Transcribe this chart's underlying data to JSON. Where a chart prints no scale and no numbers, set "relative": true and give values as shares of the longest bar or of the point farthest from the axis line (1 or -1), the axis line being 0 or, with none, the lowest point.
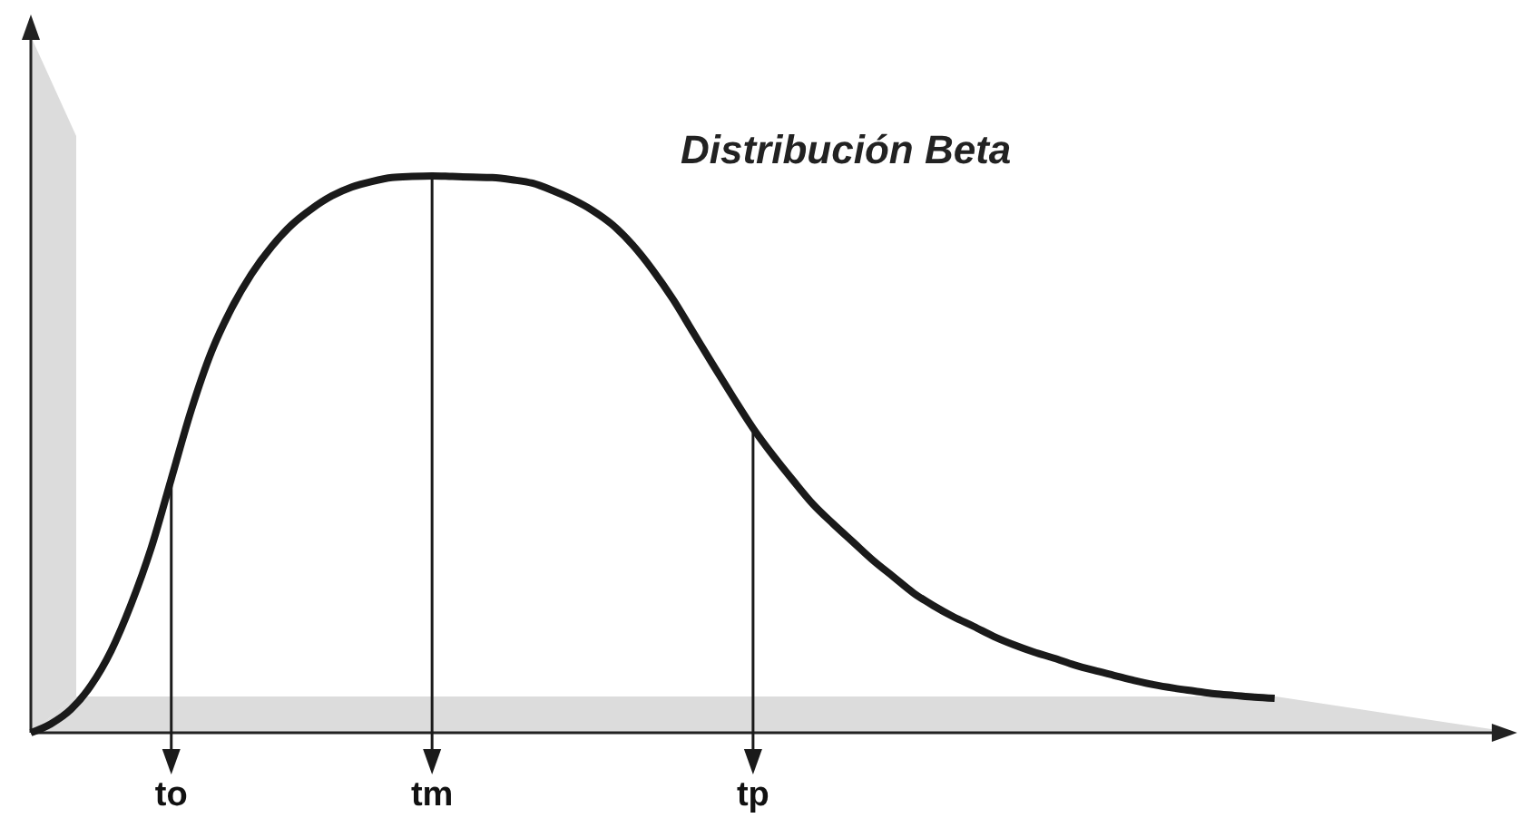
{
  "chart_data": {
    "type": "line",
    "title": "Distribución Beta",
    "relative": true,
    "categories": [
      null,
      null,
      null,
      null,
      null,
      null,
      null,
      "to",
      null,
      null,
      null,
      null,
      null,
      null,
      null,
      null,
      null,
      null,
      null,
      null,
      "tm",
      null,
      null,
      null,
      null,
      null,
      null,
      null,
      null,
      null,
      null,
      null,
      null,
      null,
      null,
      null,
      "tp",
      null,
      null,
      null,
      null,
      null,
      null,
      null,
      null,
      null,
      null,
      null,
      null,
      null,
      null,
      null,
      null,
      null,
      null,
      null,
      null,
      null,
      null,
      null,
      null,
      null,
      null
    ],
    "values": [
      0,
      0.016,
      0.042,
      0.085,
      0.147,
      0.231,
      0.332,
      0.456,
      0.58,
      0.684,
      0.762,
      0.824,
      0.873,
      0.912,
      0.941,
      0.964,
      0.98,
      0.99,
      0.997,
      0.999,
      1,
      0.999,
      0.998,
      0.997,
      0.993,
      0.987,
      0.974,
      0.958,
      0.938,
      0.912,
      0.876,
      0.831,
      0.779,
      0.72,
      0.661,
      0.603,
      0.547,
      0.498,
      0.453,
      0.41,
      0.375,
      0.342,
      0.309,
      0.28,
      0.251,
      0.228,
      0.208,
      0.191,
      0.173,
      0.158,
      0.145,
      0.134,
      0.122,
      0.112,
      0.103,
      0.094,
      0.086,
      0.08,
      0.075,
      0.07,
      0.067,
      0.064,
      0.062
    ],
    "color": "#1a1a1a",
    "ref_lines": [
      {
        "axis": "x",
        "value": "to"
      },
      {
        "axis": "x",
        "value": "tm"
      },
      {
        "axis": "x",
        "value": "tp"
      }
    ]
  }
}
